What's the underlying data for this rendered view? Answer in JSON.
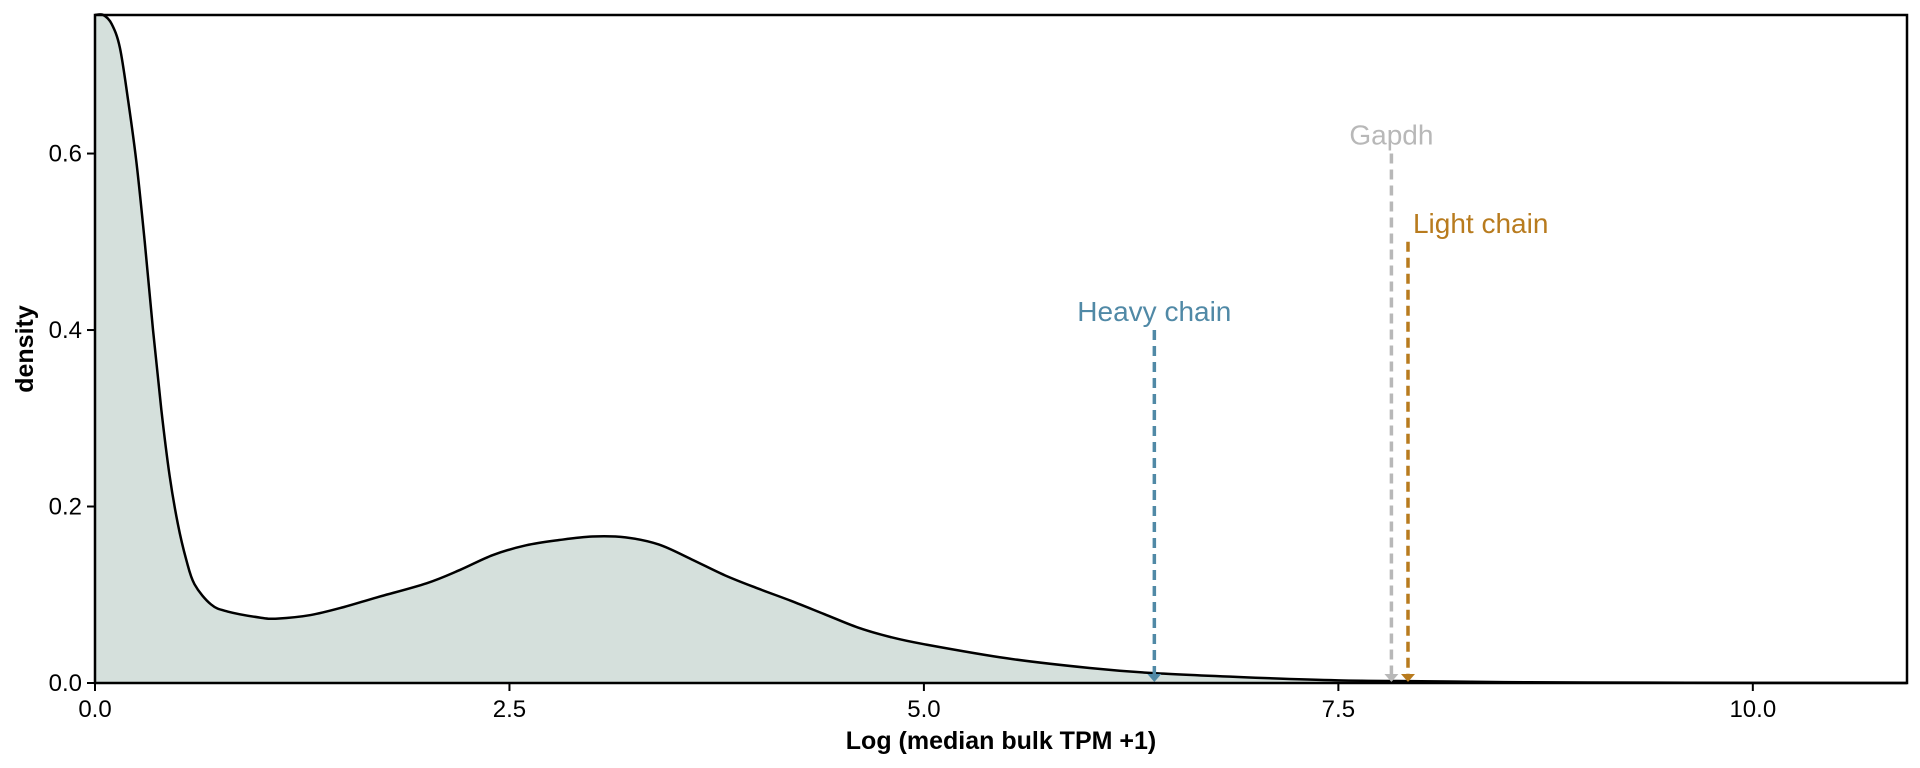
{
  "chart_data": {
    "type": "area",
    "title": "",
    "xlabel": "Log (median bulk TPM +1)",
    "ylabel": "density",
    "xlim": [
      0,
      10.93
    ],
    "ylim": [
      0,
      0.757
    ],
    "x_ticks": [
      0,
      2.5,
      5,
      7.5,
      10
    ],
    "x_tick_labels": [
      "0.0",
      "2.5",
      "5.0",
      "7.5",
      "10.0"
    ],
    "y_ticks": [
      0,
      0.2,
      0.4,
      0.6
    ],
    "y_tick_labels": [
      "0.0",
      "0.2",
      "0.4",
      "0.6"
    ],
    "grid": false,
    "fill_color": "#d5e0dc",
    "line_color": "#000000",
    "density_curve": [
      {
        "x": 0.0,
        "y": 0.757
      },
      {
        "x": 0.05,
        "y": 0.757
      },
      {
        "x": 0.1,
        "y": 0.747
      },
      {
        "x": 0.15,
        "y": 0.72
      },
      {
        "x": 0.2,
        "y": 0.66
      },
      {
        "x": 0.25,
        "y": 0.59
      },
      {
        "x": 0.3,
        "y": 0.5
      },
      {
        "x": 0.35,
        "y": 0.4
      },
      {
        "x": 0.4,
        "y": 0.31
      },
      {
        "x": 0.45,
        "y": 0.235
      },
      {
        "x": 0.5,
        "y": 0.18
      },
      {
        "x": 0.55,
        "y": 0.14
      },
      {
        "x": 0.6,
        "y": 0.112
      },
      {
        "x": 0.7,
        "y": 0.089
      },
      {
        "x": 0.8,
        "y": 0.081
      },
      {
        "x": 1.0,
        "y": 0.074
      },
      {
        "x": 1.1,
        "y": 0.073
      },
      {
        "x": 1.3,
        "y": 0.077
      },
      {
        "x": 1.5,
        "y": 0.086
      },
      {
        "x": 1.7,
        "y": 0.097
      },
      {
        "x": 2.0,
        "y": 0.113
      },
      {
        "x": 2.2,
        "y": 0.128
      },
      {
        "x": 2.4,
        "y": 0.145
      },
      {
        "x": 2.6,
        "y": 0.156
      },
      {
        "x": 2.8,
        "y": 0.162
      },
      {
        "x": 3.0,
        "y": 0.166
      },
      {
        "x": 3.2,
        "y": 0.165
      },
      {
        "x": 3.4,
        "y": 0.157
      },
      {
        "x": 3.6,
        "y": 0.14
      },
      {
        "x": 3.8,
        "y": 0.122
      },
      {
        "x": 4.0,
        "y": 0.107
      },
      {
        "x": 4.2,
        "y": 0.093
      },
      {
        "x": 4.4,
        "y": 0.078
      },
      {
        "x": 4.6,
        "y": 0.063
      },
      {
        "x": 4.8,
        "y": 0.052
      },
      {
        "x": 5.0,
        "y": 0.044
      },
      {
        "x": 5.5,
        "y": 0.028
      },
      {
        "x": 6.0,
        "y": 0.017
      },
      {
        "x": 6.4,
        "y": 0.011
      },
      {
        "x": 7.0,
        "y": 0.006
      },
      {
        "x": 7.5,
        "y": 0.003
      },
      {
        "x": 8.0,
        "y": 0.002
      },
      {
        "x": 8.5,
        "y": 0.001
      },
      {
        "x": 9.0,
        "y": 0.0005
      },
      {
        "x": 10.0,
        "y": 0.0002
      },
      {
        "x": 10.93,
        "y": 0.0
      }
    ],
    "markers": [
      {
        "label": "Heavy chain",
        "x": 6.39,
        "y_top": 0.4,
        "color": "#5089a6"
      },
      {
        "label": "Gapdh",
        "x": 7.82,
        "y_top": 0.6,
        "color": "#b8b8b8"
      },
      {
        "label": "Light chain",
        "x": 7.92,
        "y_top": 0.5,
        "color": "#b87b1e"
      }
    ]
  }
}
